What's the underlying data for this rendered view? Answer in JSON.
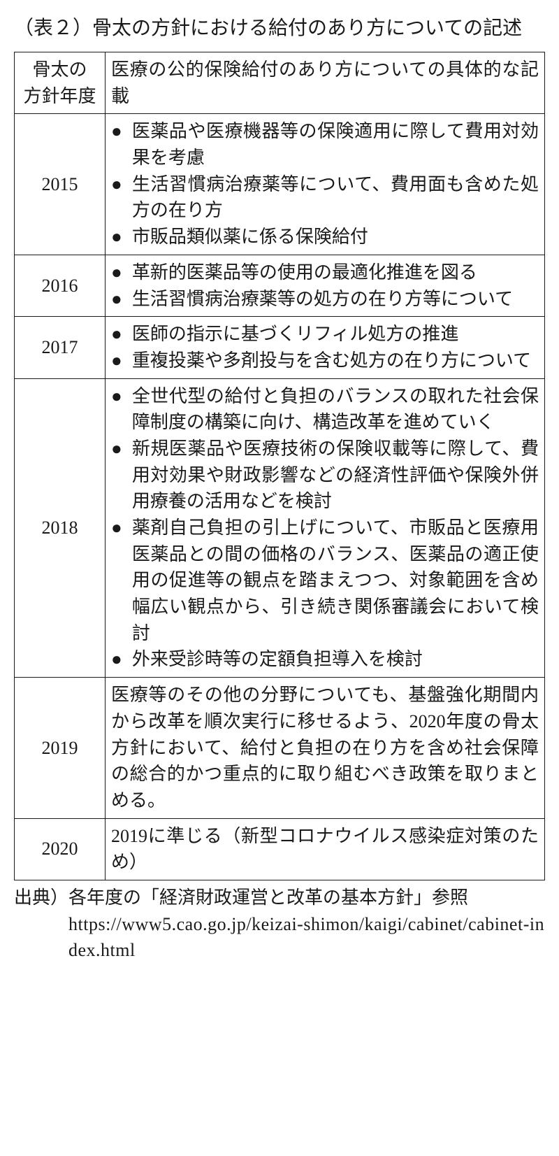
{
  "title": {
    "prefix": "（表２）",
    "text": "骨太の方針における給付のあり方についての記述"
  },
  "table": {
    "columns": {
      "year": "骨太の\n方針年度",
      "desc": "医療の公的保険給付のあり方についての具体的な記載"
    },
    "rows": [
      {
        "year": "2015",
        "bullets": [
          "医薬品や医療機器等の保険適用に際して費用対効果を考慮",
          "生活習慣病治療薬等について、費用面も含めた処方の在り方",
          "市販品類似薬に係る保険給付"
        ]
      },
      {
        "year": "2016",
        "bullets": [
          "革新的医薬品等の使用の最適化推進を図る",
          "生活習慣病治療薬等の処方の在り方等について"
        ]
      },
      {
        "year": "2017",
        "bullets": [
          "医師の指示に基づくリフィル処方の推進",
          "重複投薬や多剤投与を含む処方の在り方について"
        ]
      },
      {
        "year": "2018",
        "bullets": [
          "全世代型の給付と負担のバランスの取れた社会保障制度の構築に向け、構造改革を進めていく",
          "新規医薬品や医療技術の保険収載等に際して、費用対効果や財政影響などの経済性評価や保険外併用療養の活用などを検討",
          "薬剤自己負担の引上げについて、市販品と医療用医薬品との間の価格のバランス、医薬品の適正使用の促進等の観点を踏まえつつ、対象範囲を含め幅広い観点から、引き続き関係審議会において検討",
          "外来受診時等の定額負担導入を検討"
        ]
      },
      {
        "year": "2019",
        "text": "医療等のその他の分野についても、基盤強化期間内から改革を順次実行に移せるよう、2020年度の骨太方針において、給付と負担の在り方を含め社会保障の総合的かつ重点的に取り組むべき政策を取りまとめる。"
      },
      {
        "year": "2020",
        "text": "2019に準じる（新型コロナウイルス感染症対策のため）"
      }
    ]
  },
  "source": {
    "prefix": "出典）",
    "text": "各年度の「経済財政運営と改革の基本方針」参照",
    "url": "https://www5.cao.go.jp/keizai-shimon/kaigi/cabinet/cabinet-index.html"
  }
}
